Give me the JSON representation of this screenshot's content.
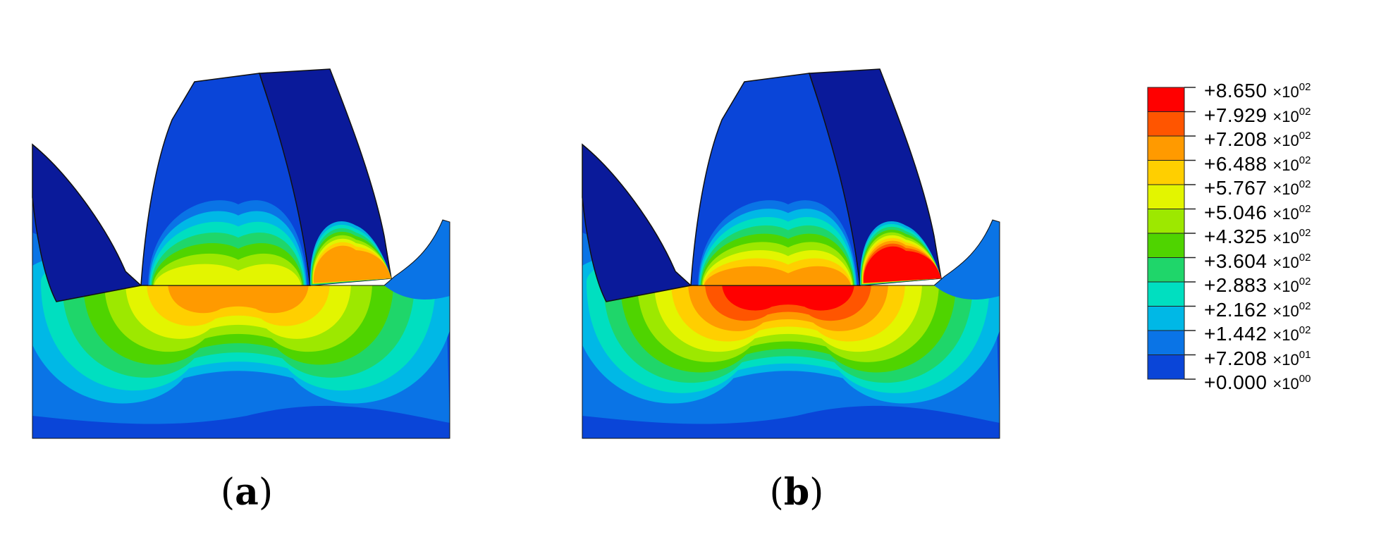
{
  "panels": [
    {
      "id": "a",
      "caption": "a",
      "peak": 0.72
    },
    {
      "id": "b",
      "caption": "b",
      "peak": 0.94
    }
  ],
  "legend": {
    "entries": [
      {
        "mant": "+8.650",
        "exp": "02",
        "color": "#ff0000"
      },
      {
        "mant": "+7.929",
        "exp": "02",
        "color": "#ff5500"
      },
      {
        "mant": "+7.208",
        "exp": "02",
        "color": "#ff9a00"
      },
      {
        "mant": "+6.488",
        "exp": "02",
        "color": "#ffcf00"
      },
      {
        "mant": "+5.767",
        "exp": "02",
        "color": "#e3f500"
      },
      {
        "mant": "+5.046",
        "exp": "02",
        "color": "#9de800"
      },
      {
        "mant": "+4.325",
        "exp": "02",
        "color": "#4fd400"
      },
      {
        "mant": "+3.604",
        "exp": "02",
        "color": "#1fd66a"
      },
      {
        "mant": "+2.883",
        "exp": "02",
        "color": "#00dfc0"
      },
      {
        "mant": "+2.162",
        "exp": "02",
        "color": "#00b8e6"
      },
      {
        "mant": "+1.442",
        "exp": "02",
        "color": "#0a74e6"
      },
      {
        "mant": "+7.208",
        "exp": "01",
        "color": "#0a45d8"
      },
      {
        "mant": "+0.000",
        "exp": "00",
        "color": "#0000e6"
      }
    ],
    "multiplier": "×10"
  }
}
